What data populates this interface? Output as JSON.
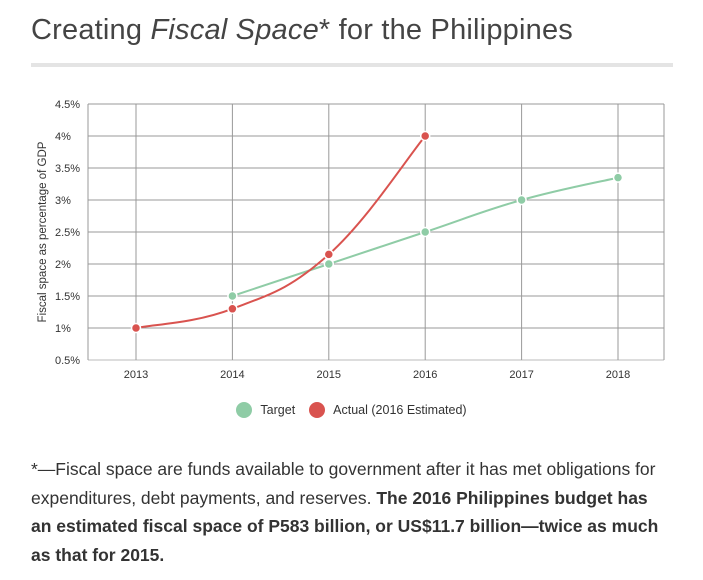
{
  "header": {
    "title_pre": "Creating ",
    "title_em": "Fiscal Space",
    "title_post": "* for the Philippines"
  },
  "chart_data": {
    "type": "line",
    "title": "Creating Fiscal Space* for the Philippines",
    "ylabel": "Fiscal space as percentage of GDP",
    "xlabel": "",
    "categories": [
      "2013",
      "2014",
      "2015",
      "2016",
      "2017",
      "2018"
    ],
    "ylim": [
      0.5,
      4.5
    ],
    "yticks": [
      0.5,
      1,
      1.5,
      2,
      2.5,
      3,
      3.5,
      4,
      4.5
    ],
    "ytick_labels": [
      "0.5%",
      "1%",
      "1.5%",
      "2%",
      "2.5%",
      "3%",
      "3.5%",
      "4%",
      "4.5%"
    ],
    "grid": true,
    "legend_position": "bottom",
    "series": [
      {
        "name": "Target",
        "color": "#8fcca6",
        "values": [
          null,
          1.5,
          2.0,
          2.5,
          3.0,
          3.35
        ]
      },
      {
        "name": "Actual (2016 Estimated)",
        "color": "#d9534f",
        "values": [
          1.0,
          1.3,
          2.15,
          4.0,
          null,
          null
        ]
      }
    ]
  },
  "footnote": {
    "plain": "*—Fiscal space are funds available to government after it has met obligations for expenditures, debt payments, and reserves. ",
    "bold": "The 2016 Philippines budget has an estimated fiscal space of P583 billion, or US$11.7 billion—twice as much as that for 2015."
  }
}
